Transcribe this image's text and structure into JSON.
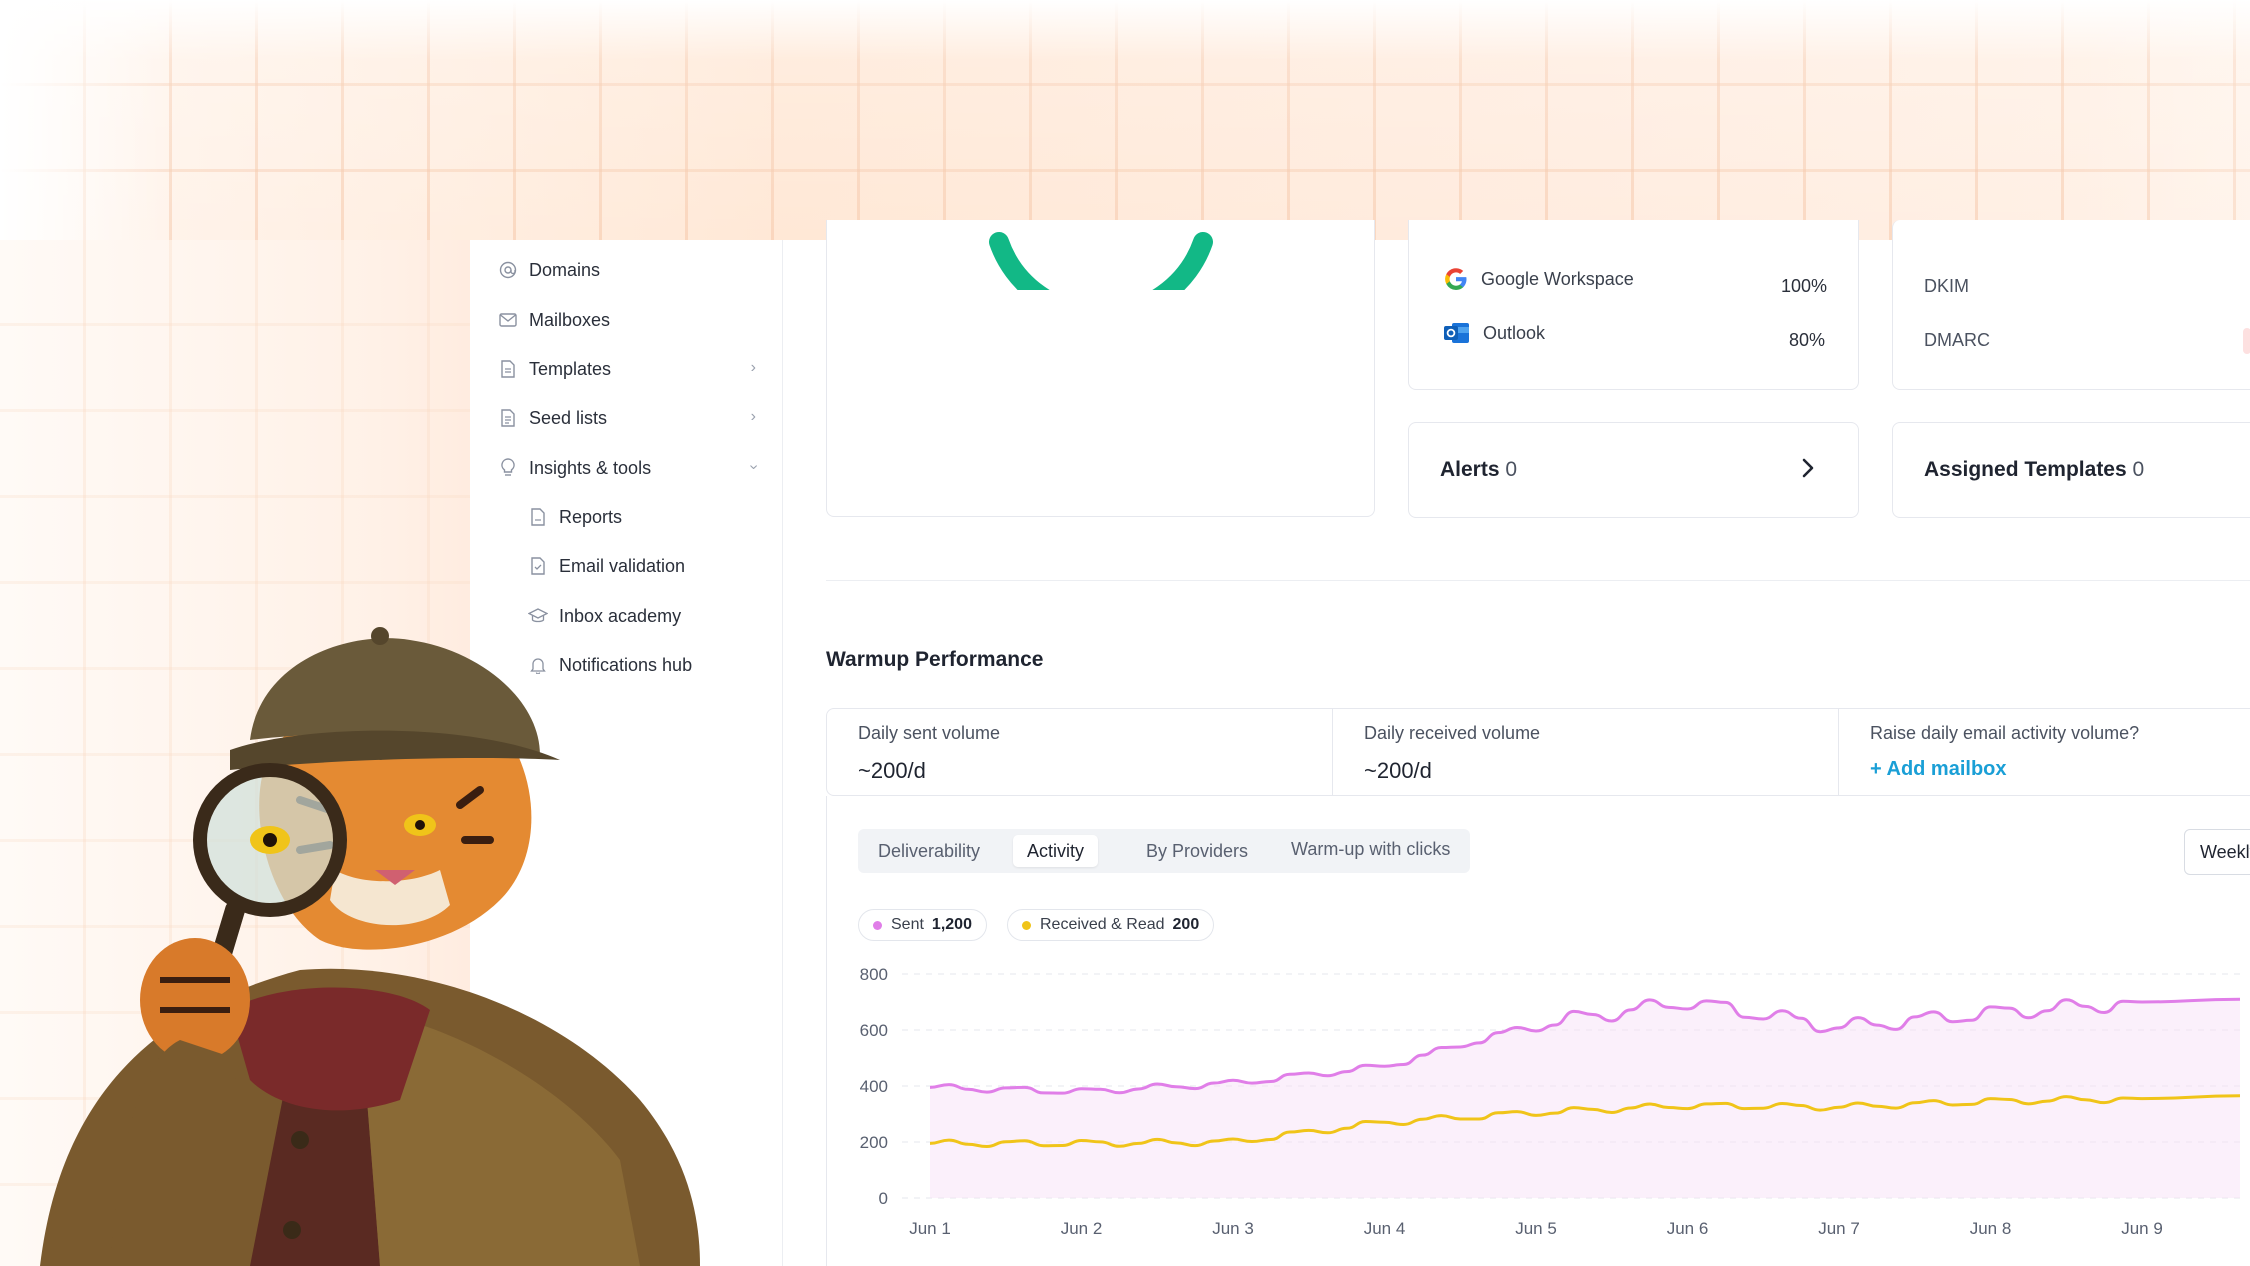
{
  "sidebar": {
    "items": [
      {
        "label": "Domains",
        "icon": "at-icon"
      },
      {
        "label": "Mailboxes",
        "icon": "mail-icon"
      },
      {
        "label": "Templates",
        "icon": "file-icon"
      },
      {
        "label": "Seed lists",
        "icon": "list-icon"
      },
      {
        "label": "Insights & tools",
        "icon": "lightbulb-icon"
      }
    ],
    "subitems": [
      {
        "label": "Reports",
        "icon": "report-icon"
      },
      {
        "label": "Email validation",
        "icon": "check-file-icon"
      },
      {
        "label": "Inbox  academy",
        "icon": "graduation-cap-icon"
      },
      {
        "label": "Notifications hub",
        "icon": "bell-icon"
      }
    ]
  },
  "providers": [
    {
      "name": "Google Workspace",
      "value": "100%"
    },
    {
      "name": "Outlook",
      "value": "80%"
    }
  ],
  "auth": [
    {
      "name": "DKIM"
    },
    {
      "name": "DMARC"
    }
  ],
  "alerts": {
    "label": "Alerts",
    "count": "0"
  },
  "assigned_templates": {
    "label": "Assigned Templates",
    "count": "0"
  },
  "warmup": {
    "title": "Warmup Performance",
    "daily_sent_label": "Daily sent volume",
    "daily_sent_value": "~200/d",
    "daily_received_label": "Daily received volume",
    "daily_received_value": "~200/d",
    "raise_label": "Raise daily email activity volume?",
    "add_mailbox": "+ Add mailbox"
  },
  "tabs": [
    "Deliverability",
    "Activity",
    "By Providers",
    "Warm-up with clicks"
  ],
  "active_tab": "Activity",
  "period_select": "Weekly",
  "legend": {
    "sent_label": "Sent",
    "sent_value": "1,200",
    "received_label": "Received & Read",
    "received_value": "200"
  },
  "colors": {
    "sent": "#e07ee8",
    "received": "#f0c419",
    "gauge": "#10b981",
    "link": "#1a9fd6"
  },
  "chart_data": {
    "type": "line",
    "x": [
      "Jun 1",
      "Jun 2",
      "Jun 3",
      "Jun 4",
      "Jun 5",
      "Jun 6",
      "Jun 7",
      "Jun 8",
      "Jun 9"
    ],
    "y_ticks": [
      800,
      600,
      400,
      200,
      0
    ],
    "ylim": [
      0,
      800
    ],
    "series": [
      {
        "name": "Sent",
        "values": [
          395,
          380,
          410,
          470,
          620,
          700,
          610,
          660,
          700
        ]
      },
      {
        "name": "Received & Read",
        "values": [
          195,
          195,
          200,
          270,
          305,
          330,
          325,
          345,
          355
        ]
      }
    ]
  }
}
